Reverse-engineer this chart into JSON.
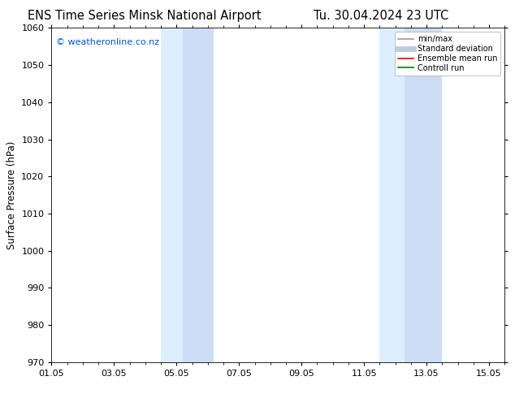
{
  "title_left": "ENS Time Series Minsk National Airport",
  "title_right": "Tu. 30.04.2024 23 UTC",
  "ylabel": "Surface Pressure (hPa)",
  "ylim": [
    970,
    1060
  ],
  "yticks": [
    970,
    980,
    990,
    1000,
    1010,
    1020,
    1030,
    1040,
    1050,
    1060
  ],
  "xlim_start": 0.0,
  "xlim_end": 14.5,
  "xtick_positions": [
    0,
    2,
    4,
    6,
    8,
    10,
    12,
    14
  ],
  "xtick_labels": [
    "01.05",
    "03.05",
    "05.05",
    "07.05",
    "09.05",
    "11.05",
    "13.05",
    "15.05"
  ],
  "shaded_bands": [
    {
      "x_start": 3.5,
      "x_end": 4.2,
      "color": "#ddeeff"
    },
    {
      "x_start": 4.2,
      "x_end": 5.2,
      "color": "#ccddf5"
    },
    {
      "x_start": 10.5,
      "x_end": 11.3,
      "color": "#ddeeff"
    },
    {
      "x_start": 11.3,
      "x_end": 12.5,
      "color": "#ccddf5"
    }
  ],
  "watermark_text": "© weatheronline.co.nz",
  "watermark_color": "#0055cc",
  "legend_items": [
    {
      "label": "min/max",
      "color": "#999999",
      "lw": 1.2,
      "linestyle": "-"
    },
    {
      "label": "Standard deviation",
      "color": "#bbccdd",
      "lw": 5,
      "linestyle": "-"
    },
    {
      "label": "Ensemble mean run",
      "color": "red",
      "lw": 1.2,
      "linestyle": "-"
    },
    {
      "label": "Controll run",
      "color": "green",
      "lw": 1.2,
      "linestyle": "-"
    }
  ],
  "background_color": "#ffffff",
  "title_fontsize": 10.5,
  "tick_fontsize": 8,
  "ylabel_fontsize": 8.5
}
